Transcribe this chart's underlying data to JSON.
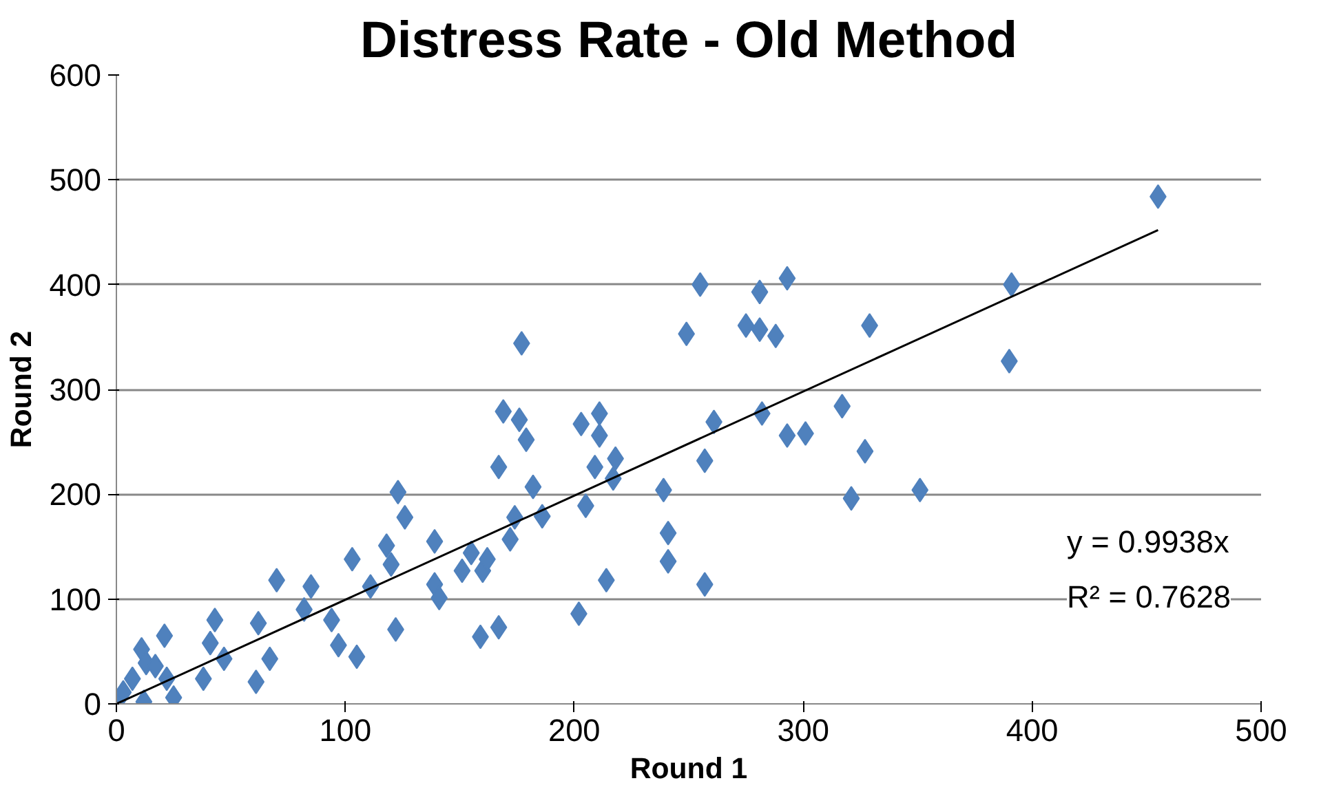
{
  "chart_data": {
    "type": "scatter",
    "title": "Distress Rate - Old Method",
    "xlabel": "Round 1",
    "ylabel": "Round 2",
    "xlim": [
      0,
      500
    ],
    "xticks": [
      0,
      100,
      200,
      300,
      400,
      500
    ],
    "ylim": [
      0,
      600
    ],
    "yticks": [
      0,
      100,
      200,
      300,
      400,
      500,
      600
    ],
    "grid": "y",
    "series": [
      {
        "marker": "diamond",
        "color": "#4f81bd",
        "x": [
          0,
          3,
          7,
          11,
          13,
          12,
          17,
          21,
          25,
          22,
          38,
          41,
          43,
          47,
          61,
          62,
          67,
          70,
          82,
          85,
          94,
          97,
          103,
          105,
          111,
          118,
          120,
          122,
          123,
          126,
          139,
          139,
          141,
          151,
          155,
          159,
          160,
          162,
          167,
          167,
          169,
          172,
          174,
          176,
          177,
          179,
          182,
          186,
          202,
          203,
          205,
          211,
          211,
          214,
          218,
          217,
          209,
          239,
          241,
          241,
          257,
          249,
          255,
          275,
          281,
          293,
          281,
          288,
          261,
          257,
          282,
          293,
          301,
          317,
          327,
          321,
          351,
          329,
          455,
          391,
          390
        ],
        "values": [
          0,
          11,
          24,
          52,
          39,
          2,
          36,
          65,
          6,
          24,
          24,
          58,
          80,
          43,
          21,
          77,
          43,
          118,
          90,
          112,
          80,
          56,
          138,
          45,
          112,
          151,
          133,
          71,
          202,
          178,
          155,
          114,
          101,
          127,
          144,
          64,
          127,
          138,
          73,
          226,
          279,
          157,
          178,
          271,
          344,
          252,
          207,
          179,
          86,
          267,
          189,
          277,
          256,
          118,
          234,
          215,
          226,
          204,
          163,
          136,
          114,
          353,
          400,
          361,
          393,
          406,
          357,
          351,
          269,
          232,
          277,
          256,
          258,
          284,
          241,
          196,
          204,
          361,
          484,
          400,
          327
        ]
      },
      {
        "type": "line",
        "marker": "none",
        "color": "#000000",
        "x": [
          0,
          455
        ],
        "values": [
          0,
          452
        ]
      }
    ],
    "annotations": [
      "y = 0.9938x",
      "R² = 0.7628"
    ]
  }
}
